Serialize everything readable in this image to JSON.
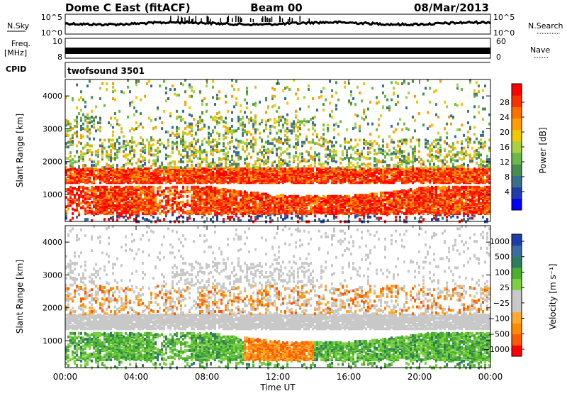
{
  "header": {
    "station": "Dome C East (fitACF)",
    "beam": "Beam 00",
    "date": "08/Mar/2013"
  },
  "panels": {
    "nsky_label": "N.Sky",
    "nsearch_label": "N.Search",
    "nsky_ticks": [
      "10^5",
      "10^0"
    ],
    "nsearch_ticks": [
      "10^5",
      "10^0"
    ],
    "freq_label": "Freq.",
    "freq_unit": "[MHz]",
    "freq_ticks": [
      "10",
      "8"
    ],
    "nave_label": "Nave",
    "nave_ticks": [
      "60",
      "0"
    ],
    "cpid_label": "CPID",
    "cpid_value": "twofsound 3501"
  },
  "chart_data": [
    {
      "type": "heatmap",
      "name": "Power",
      "ylabel": "Slant Range [km]",
      "xlabel": "",
      "x_range_hours": [
        0,
        24
      ],
      "ylim": [
        180,
        4500
      ],
      "yticks": [
        "4000",
        "3000",
        "2000",
        "1000"
      ],
      "colorbar_label": "Power [dB]",
      "colorbar_ticks": [
        "28",
        "24",
        "20",
        "16",
        "12",
        "8",
        "4"
      ],
      "colorbar_colors": [
        "#0000ff",
        "#1e3caa",
        "#3a6e8e",
        "#4a8c50",
        "#6ab84a",
        "#a8d040",
        "#f0c800",
        "#ffa000",
        "#ff7000",
        "#ff3000",
        "#ff0000"
      ],
      "bands": [
        {
          "from_km": 1300,
          "to_km": 1800,
          "level": "strong"
        },
        {
          "from_km": 400,
          "to_km": 1200,
          "level": "strong"
        },
        {
          "from_km": 1800,
          "to_km": 3300,
          "level": "weak"
        }
      ]
    },
    {
      "type": "heatmap",
      "name": "Velocity",
      "ylabel": "Slant Range [km]",
      "xlabel": "Time UT",
      "x_range_hours": [
        0,
        24
      ],
      "ylim": [
        180,
        4500
      ],
      "yticks": [
        "4000",
        "3000",
        "2000",
        "1000"
      ],
      "xticks": [
        "00:00",
        "04:00",
        "08:00",
        "12:00",
        "16:00",
        "20:00",
        "00:00"
      ],
      "colorbar_label": "Velocity [m s⁻¹]",
      "colorbar_ticks": [
        "1000",
        "500",
        "100",
        "25",
        "−25",
        "−100",
        "−500",
        "−1000"
      ],
      "colorbar_colors": [
        "#ff0000",
        "#ff5a00",
        "#ff8c00",
        "#ffaa30",
        "#c8c8c8",
        "#c8c8c8",
        "#7cd040",
        "#4ab030",
        "#2e7e5e",
        "#3a6ea0",
        "#1e3caa"
      ]
    }
  ]
}
